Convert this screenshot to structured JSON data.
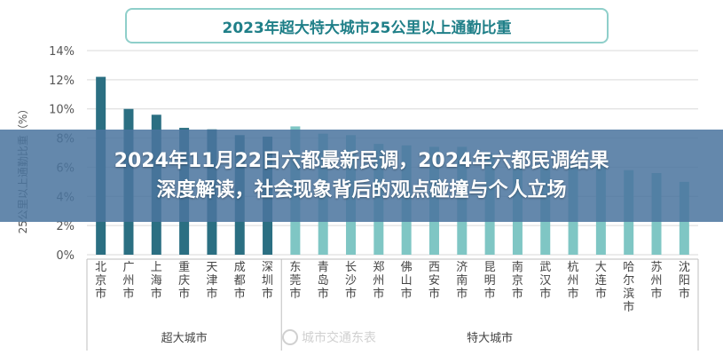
{
  "chart_data": {
    "type": "bar",
    "title": "2023年超大特大城市25公里以上通勤比重",
    "ylabel": "25公里以上通勤比重（%）",
    "xlabel": "",
    "ylim": [
      0,
      14
    ],
    "yticks": [
      "0%",
      "2%",
      "4%",
      "6%",
      "8%",
      "10%",
      "12%",
      "14%"
    ],
    "grid": true,
    "categories": [
      "北京市",
      "广州市",
      "上海市",
      "重庆市",
      "天津市",
      "成都市",
      "深圳市",
      "东莞市",
      "青岛市",
      "长沙市",
      "郑州市",
      "佛山市",
      "西安市",
      "济南市",
      "昆明市",
      "南京市",
      "武汉市",
      "杭州市",
      "大连市",
      "哈尔滨市",
      "苏州市",
      "沈阳市"
    ],
    "values": [
      12.2,
      10,
      9.6,
      8.7,
      8.6,
      8.2,
      8.1,
      8.8,
      8.3,
      8.2,
      7.6,
      7.5,
      7.4,
      7.4,
      6.9,
      6.4,
      6.2,
      6.2,
      6.1,
      5.8,
      5.6,
      5.0
    ],
    "series_colors": [
      "#2b6f82",
      "#7fc6c4"
    ],
    "groups": [
      {
        "label": "超大城市",
        "count": 7
      },
      {
        "label": "特大城市",
        "count": 15
      }
    ]
  },
  "overlay": {
    "line1": "2024年11月22日六都最新民调，2024年六都民调结果",
    "line2": "深度解读，社会现象背后的观点碰撞与个人立场"
  },
  "watermark": {
    "text": "城市交通东表"
  }
}
